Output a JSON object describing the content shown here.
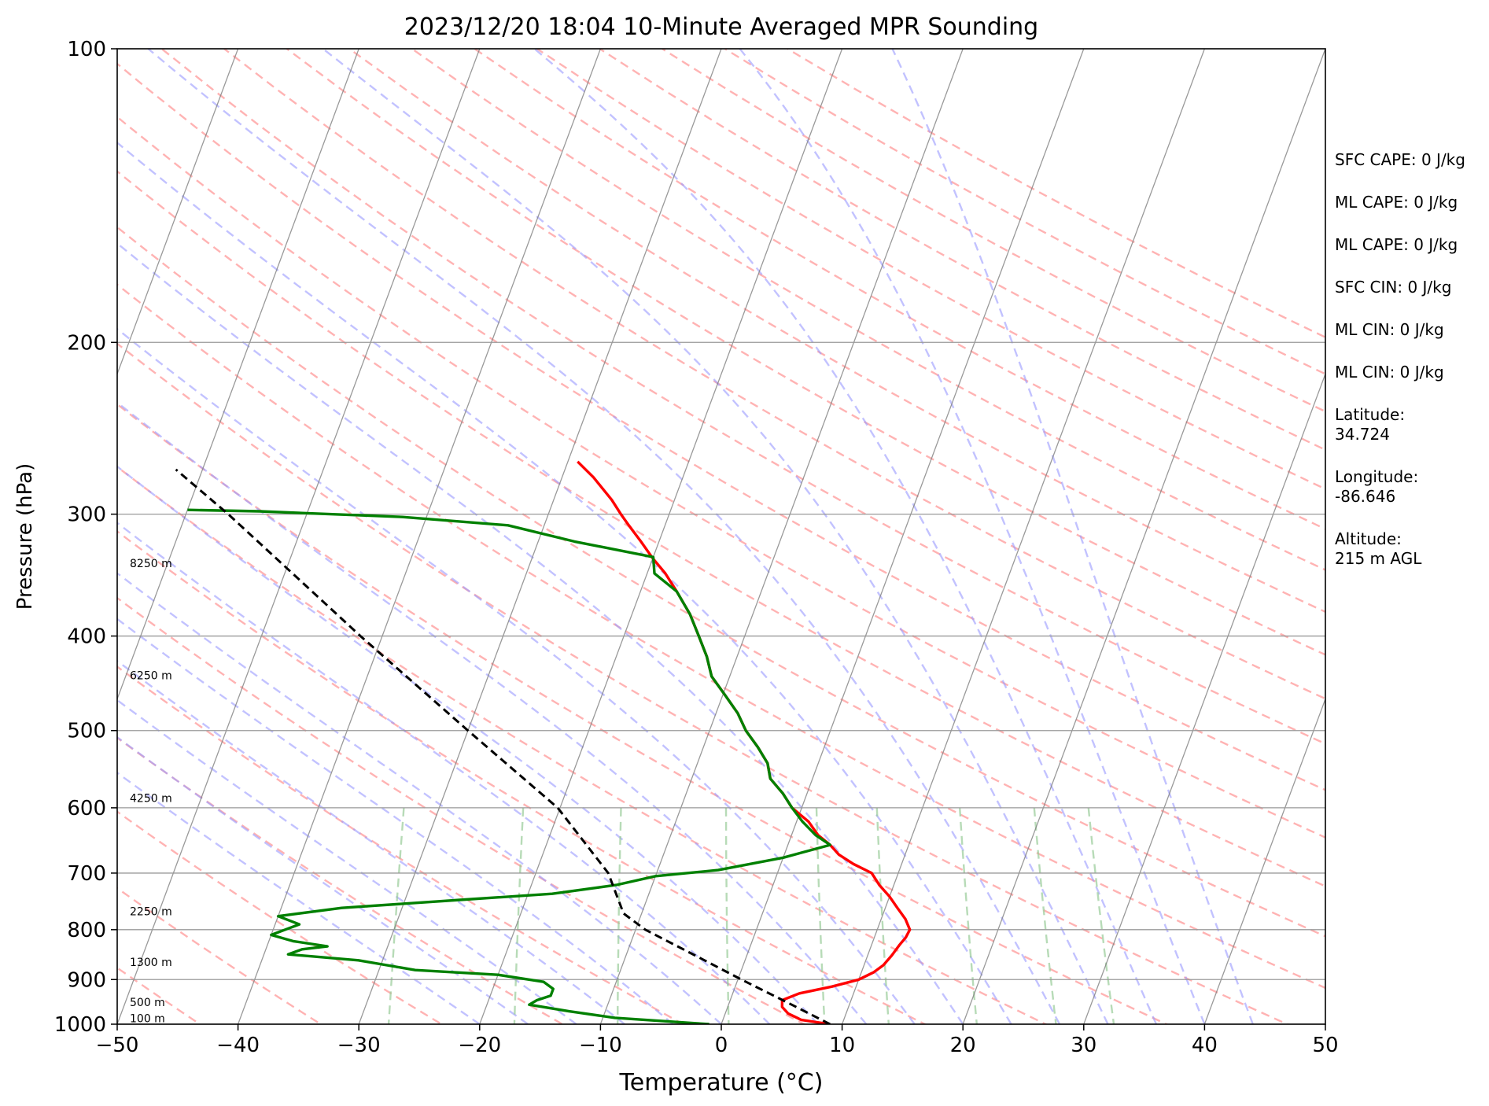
{
  "chart_data": {
    "type": "line",
    "subtype": "skew-t log-p sounding",
    "title": "2023/12/20 18:04 10-Minute Averaged MPR Sounding",
    "xlabel": "Temperature (°C)",
    "ylabel": "Pressure (hPa)",
    "xlim": [
      -50,
      50
    ],
    "ylim": [
      1000,
      100
    ],
    "y_scale": "log",
    "x_ticks": [
      -50,
      -40,
      -30,
      -20,
      -10,
      0,
      10,
      20,
      30,
      40,
      50
    ],
    "x_tick_labels": [
      "−50",
      "−40",
      "−30",
      "−20",
      "−10",
      "0",
      "10",
      "20",
      "30",
      "40",
      "50"
    ],
    "y_ticks": [
      100,
      200,
      300,
      400,
      500,
      600,
      700,
      800,
      900,
      1000
    ],
    "y_tick_labels": [
      "100",
      "200",
      "300",
      "400",
      "500",
      "600",
      "700",
      "800",
      "900",
      "1000"
    ],
    "grid": true,
    "series": [
      {
        "role": "temperature",
        "color": "#ff0000",
        "data": [
          [
            1000,
            9.0
          ],
          [
            990,
            6.5
          ],
          [
            975,
            5.2
          ],
          [
            960,
            4.5
          ],
          [
            945,
            4.3
          ],
          [
            930,
            5.5
          ],
          [
            915,
            8.0
          ],
          [
            900,
            10.0
          ],
          [
            885,
            11.0
          ],
          [
            870,
            11.6
          ],
          [
            850,
            12.0
          ],
          [
            830,
            12.3
          ],
          [
            815,
            12.6
          ],
          [
            800,
            12.7
          ],
          [
            780,
            12.0
          ],
          [
            760,
            11.0
          ],
          [
            740,
            10.0
          ],
          [
            720,
            8.8
          ],
          [
            700,
            7.8
          ],
          [
            685,
            6.0
          ],
          [
            670,
            4.5
          ],
          [
            655,
            3.5
          ],
          [
            640,
            2.2
          ],
          [
            620,
            1.0
          ],
          [
            600,
            -0.8
          ],
          [
            580,
            -2.0
          ],
          [
            560,
            -3.5
          ],
          [
            540,
            -4.2
          ],
          [
            520,
            -5.5
          ],
          [
            500,
            -7.0
          ],
          [
            480,
            -8.2
          ],
          [
            460,
            -9.8
          ],
          [
            440,
            -11.5
          ],
          [
            420,
            -12.5
          ],
          [
            400,
            -13.8
          ],
          [
            380,
            -15.2
          ],
          [
            360,
            -17.0
          ],
          [
            345,
            -18.5
          ],
          [
            333,
            -20.0
          ],
          [
            320,
            -21.5
          ],
          [
            308,
            -23.0
          ],
          [
            300,
            -24.0
          ],
          [
            290,
            -25.2
          ],
          [
            275,
            -27.4
          ],
          [
            265,
            -29.2
          ]
        ]
      },
      {
        "role": "dewpoint",
        "color": "#008000",
        "data": [
          [
            1000,
            -1.0
          ],
          [
            985,
            -9.0
          ],
          [
            970,
            -13.0
          ],
          [
            955,
            -16.5
          ],
          [
            945,
            -16.0
          ],
          [
            935,
            -15.0
          ],
          [
            920,
            -15.0
          ],
          [
            905,
            -16.0
          ],
          [
            890,
            -20.0
          ],
          [
            880,
            -27.0
          ],
          [
            860,
            -32.0
          ],
          [
            848,
            -38.0
          ],
          [
            838,
            -37.0
          ],
          [
            832,
            -35.0
          ],
          [
            822,
            -38.0
          ],
          [
            810,
            -40.0
          ],
          [
            800,
            -39.0
          ],
          [
            790,
            -38.0
          ],
          [
            775,
            -40.0
          ],
          [
            760,
            -35.0
          ],
          [
            745,
            -25.0
          ],
          [
            735,
            -18.0
          ],
          [
            720,
            -13.0
          ],
          [
            705,
            -10.0
          ],
          [
            695,
            -5.0
          ],
          [
            675,
            0.0
          ],
          [
            655,
            3.5
          ],
          [
            640,
            2.0
          ],
          [
            620,
            0.5
          ],
          [
            600,
            -0.8
          ],
          [
            580,
            -2.0
          ],
          [
            560,
            -3.5
          ],
          [
            540,
            -4.2
          ],
          [
            520,
            -5.5
          ],
          [
            500,
            -7.0
          ],
          [
            480,
            -8.2
          ],
          [
            460,
            -9.8
          ],
          [
            440,
            -11.5
          ],
          [
            420,
            -12.5
          ],
          [
            400,
            -13.8
          ],
          [
            380,
            -15.2
          ],
          [
            360,
            -17.0
          ],
          [
            345,
            -19.4
          ],
          [
            332,
            -20.0
          ],
          [
            320,
            -27.0
          ],
          [
            308,
            -33.0
          ],
          [
            302,
            -42.0
          ],
          [
            298,
            -54.0
          ],
          [
            297,
            -60.0
          ]
        ]
      },
      {
        "role": "parcel profile",
        "color": "#000000",
        "style": "dashed",
        "data": [
          [
            1000,
            9.0
          ],
          [
            950,
            4.8
          ],
          [
            900,
            0.3
          ],
          [
            850,
            -4.3
          ],
          [
            800,
            -9.2
          ],
          [
            770,
            -11.5
          ],
          [
            700,
            -14.0
          ],
          [
            600,
            -20.2
          ],
          [
            500,
            -30.0
          ],
          [
            400,
            -41.8
          ],
          [
            300,
            -56.5
          ],
          [
            270,
            -62.2
          ]
        ]
      }
    ],
    "background_lines": {
      "isotherms": {
        "color": "#808080",
        "style": "solid"
      },
      "dry_adiabats": {
        "color": "#ff9999",
        "style": "dashed"
      },
      "moist_adiabats": {
        "color": "#9999ff",
        "style": "dashed"
      },
      "mixing_ratio_lines": {
        "color": "#99cc99",
        "style": "dashed"
      }
    },
    "height_labels": [
      {
        "p": 340,
        "text": "8250 m"
      },
      {
        "p": 443,
        "text": "6250 m"
      },
      {
        "p": 592,
        "text": "4250 m"
      },
      {
        "p": 773,
        "text": "2250 m"
      },
      {
        "p": 872,
        "text": "1300 m"
      },
      {
        "p": 958,
        "text": "500 m"
      },
      {
        "p": 995,
        "text": "100 m"
      }
    ],
    "annotations": [
      "SFC CAPE: 0 J/kg",
      "ML CAPE: 0 J/kg",
      "ML CAPE: 0 J/kg",
      "SFC CIN: 0 J/kg",
      "ML CIN: 0 J/kg",
      "ML CIN: 0 J/kg",
      "Latitude:\n34.724",
      "Longitude:\n-86.646",
      "Altitude:\n215 m AGL"
    ]
  }
}
